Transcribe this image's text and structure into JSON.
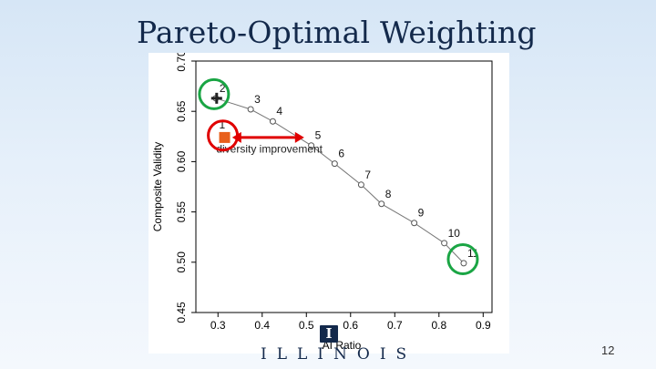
{
  "slide": {
    "title": "Pareto-Optimal Weighting",
    "page_number": "12",
    "logo_mark": "I",
    "logo_text": "ILLINOIS"
  },
  "chart_data": {
    "type": "scatter",
    "connected": true,
    "title": "",
    "xlabel": "AI Ratio",
    "ylabel": "Composite Validity",
    "xlim": [
      0.25,
      0.92
    ],
    "ylim": [
      0.45,
      0.7
    ],
    "xticks": [
      0.3,
      0.4,
      0.5,
      0.6,
      0.7,
      0.8,
      0.9
    ],
    "xtick_labels": [
      "0.3",
      "0.4",
      "0.5",
      "0.6",
      "0.7",
      "0.8",
      "0.9"
    ],
    "yticks": [
      0.45,
      0.5,
      0.55,
      0.6,
      0.65,
      0.7
    ],
    "ytick_labels": [
      "0.45",
      "0.50",
      "0.55",
      "0.60",
      "0.65",
      "0.70"
    ],
    "points": [
      {
        "label": "2",
        "x": 0.295,
        "y": 0.663
      },
      {
        "label": "3",
        "x": 0.374,
        "y": 0.652
      },
      {
        "label": "4",
        "x": 0.424,
        "y": 0.64
      },
      {
        "label": "5",
        "x": 0.511,
        "y": 0.616
      },
      {
        "label": "6",
        "x": 0.564,
        "y": 0.598
      },
      {
        "label": "7",
        "x": 0.624,
        "y": 0.577
      },
      {
        "label": "8",
        "x": 0.67,
        "y": 0.558
      },
      {
        "label": "9",
        "x": 0.744,
        "y": 0.539
      },
      {
        "label": "10",
        "x": 0.812,
        "y": 0.519
      },
      {
        "label": "11",
        "x": 0.856,
        "y": 0.499
      }
    ],
    "special_points": [
      {
        "label": "1",
        "x": 0.315,
        "y": 0.624,
        "marker": "orange-square",
        "color": "#e8601c"
      },
      {
        "label": "",
        "x": 0.297,
        "y": 0.663,
        "marker": "plus",
        "color": "#222222"
      }
    ],
    "annotations": [
      {
        "text": "diversity improvement",
        "x": 0.296,
        "y": 0.609
      },
      {
        "type": "double-arrow",
        "x1": 0.33,
        "x2": 0.497,
        "y": 0.624,
        "color": "#e00000"
      },
      {
        "type": "circle",
        "color": "#e00000",
        "center_x": 0.311,
        "center_y": 0.626
      },
      {
        "type": "circle",
        "color": "#1aa544",
        "center_x": 0.291,
        "center_y": 0.667
      },
      {
        "type": "circle",
        "color": "#1aa544",
        "center_x": 0.854,
        "center_y": 0.503
      }
    ]
  }
}
